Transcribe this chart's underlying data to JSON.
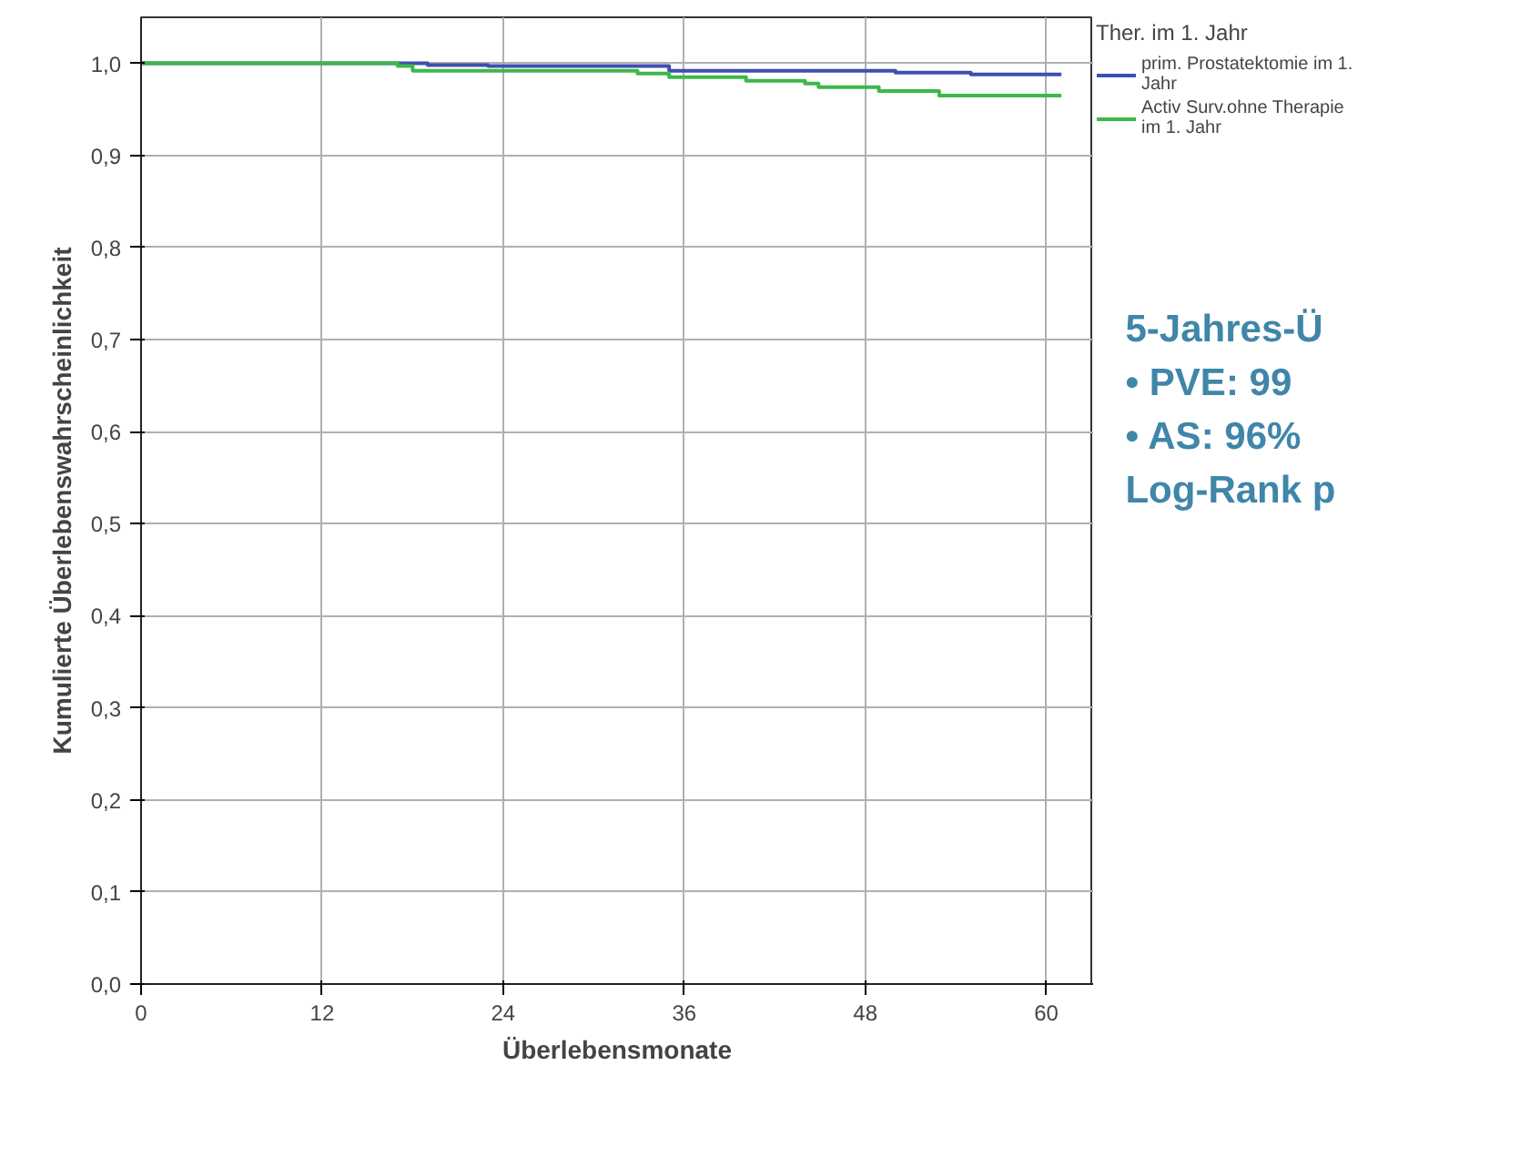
{
  "chart_data": {
    "type": "step",
    "xlabel": "Überlebensmonate",
    "ylabel": "Kumulierte Überlebenswahrscheinlichkeit",
    "legend_title": "Ther. im 1. Jahr",
    "legend": "top right",
    "grid": true,
    "line_style": "solid",
    "marker": "none",
    "xlim": [
      0,
      63.1
    ],
    "ylim": [
      0,
      1.05
    ],
    "xticks": [
      0,
      12,
      24,
      36,
      48,
      60
    ],
    "yticks": [
      {
        "value": 0,
        "label": "0,0"
      },
      {
        "value": 0.1,
        "label": "0,1"
      },
      {
        "value": 0.2,
        "label": "0,2"
      },
      {
        "value": 0.3,
        "label": "0,3"
      },
      {
        "value": 0.4,
        "label": "0,4"
      },
      {
        "value": 0.5,
        "label": "0,5"
      },
      {
        "value": 0.6,
        "label": "0,6"
      },
      {
        "value": 0.7,
        "label": "0,7"
      },
      {
        "value": 0.8,
        "label": "0,8"
      },
      {
        "value": 0.9,
        "label": "0,9"
      },
      {
        "value": 1.0,
        "label": "1,0"
      }
    ],
    "series": [
      {
        "name": "prim. Prostatektomie im 1. Jahr",
        "color": "#3f4fb0",
        "x": [
          0,
          19,
          23,
          35,
          50,
          55,
          61
        ],
        "values": [
          1.0,
          0.998,
          0.997,
          0.992,
          0.99,
          0.988,
          0.988
        ]
      },
      {
        "name": "Activ Surv.ohne Therapie im 1. Jahr",
        "color": "#3cb84a",
        "x": [
          0,
          17,
          18,
          32.9,
          35,
          40.1,
          44,
          44.9,
          48.9,
          52.9,
          61
        ],
        "values": [
          1.0,
          0.997,
          0.992,
          0.989,
          0.985,
          0.981,
          0.978,
          0.974,
          0.97,
          0.965,
          0.965
        ]
      }
    ],
    "annotations": [
      "5-Jahres-Ü",
      "•  PVE: 99",
      "•  AS: 96%",
      "Log-Rank p"
    ]
  }
}
